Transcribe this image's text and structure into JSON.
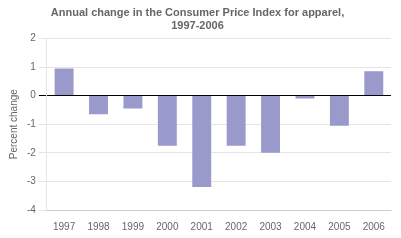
{
  "chart_data": {
    "type": "bar",
    "title": "Annual change in the Consumer Price Index for apparel,\n1997-2006",
    "y_label": "Percent change",
    "categories": [
      "1997",
      "1998",
      "1999",
      "2000",
      "2001",
      "2002",
      "2003",
      "2004",
      "2005",
      "2006"
    ],
    "values": [
      0.95,
      -0.65,
      -0.45,
      -1.75,
      -3.2,
      -1.75,
      -2.0,
      -0.1,
      -1.05,
      0.85
    ],
    "color": "#9999cc",
    "ylim": [
      -4,
      2
    ],
    "yticks": [
      -4,
      -3,
      -2,
      -1,
      0,
      1,
      2
    ],
    "grid": true
  }
}
